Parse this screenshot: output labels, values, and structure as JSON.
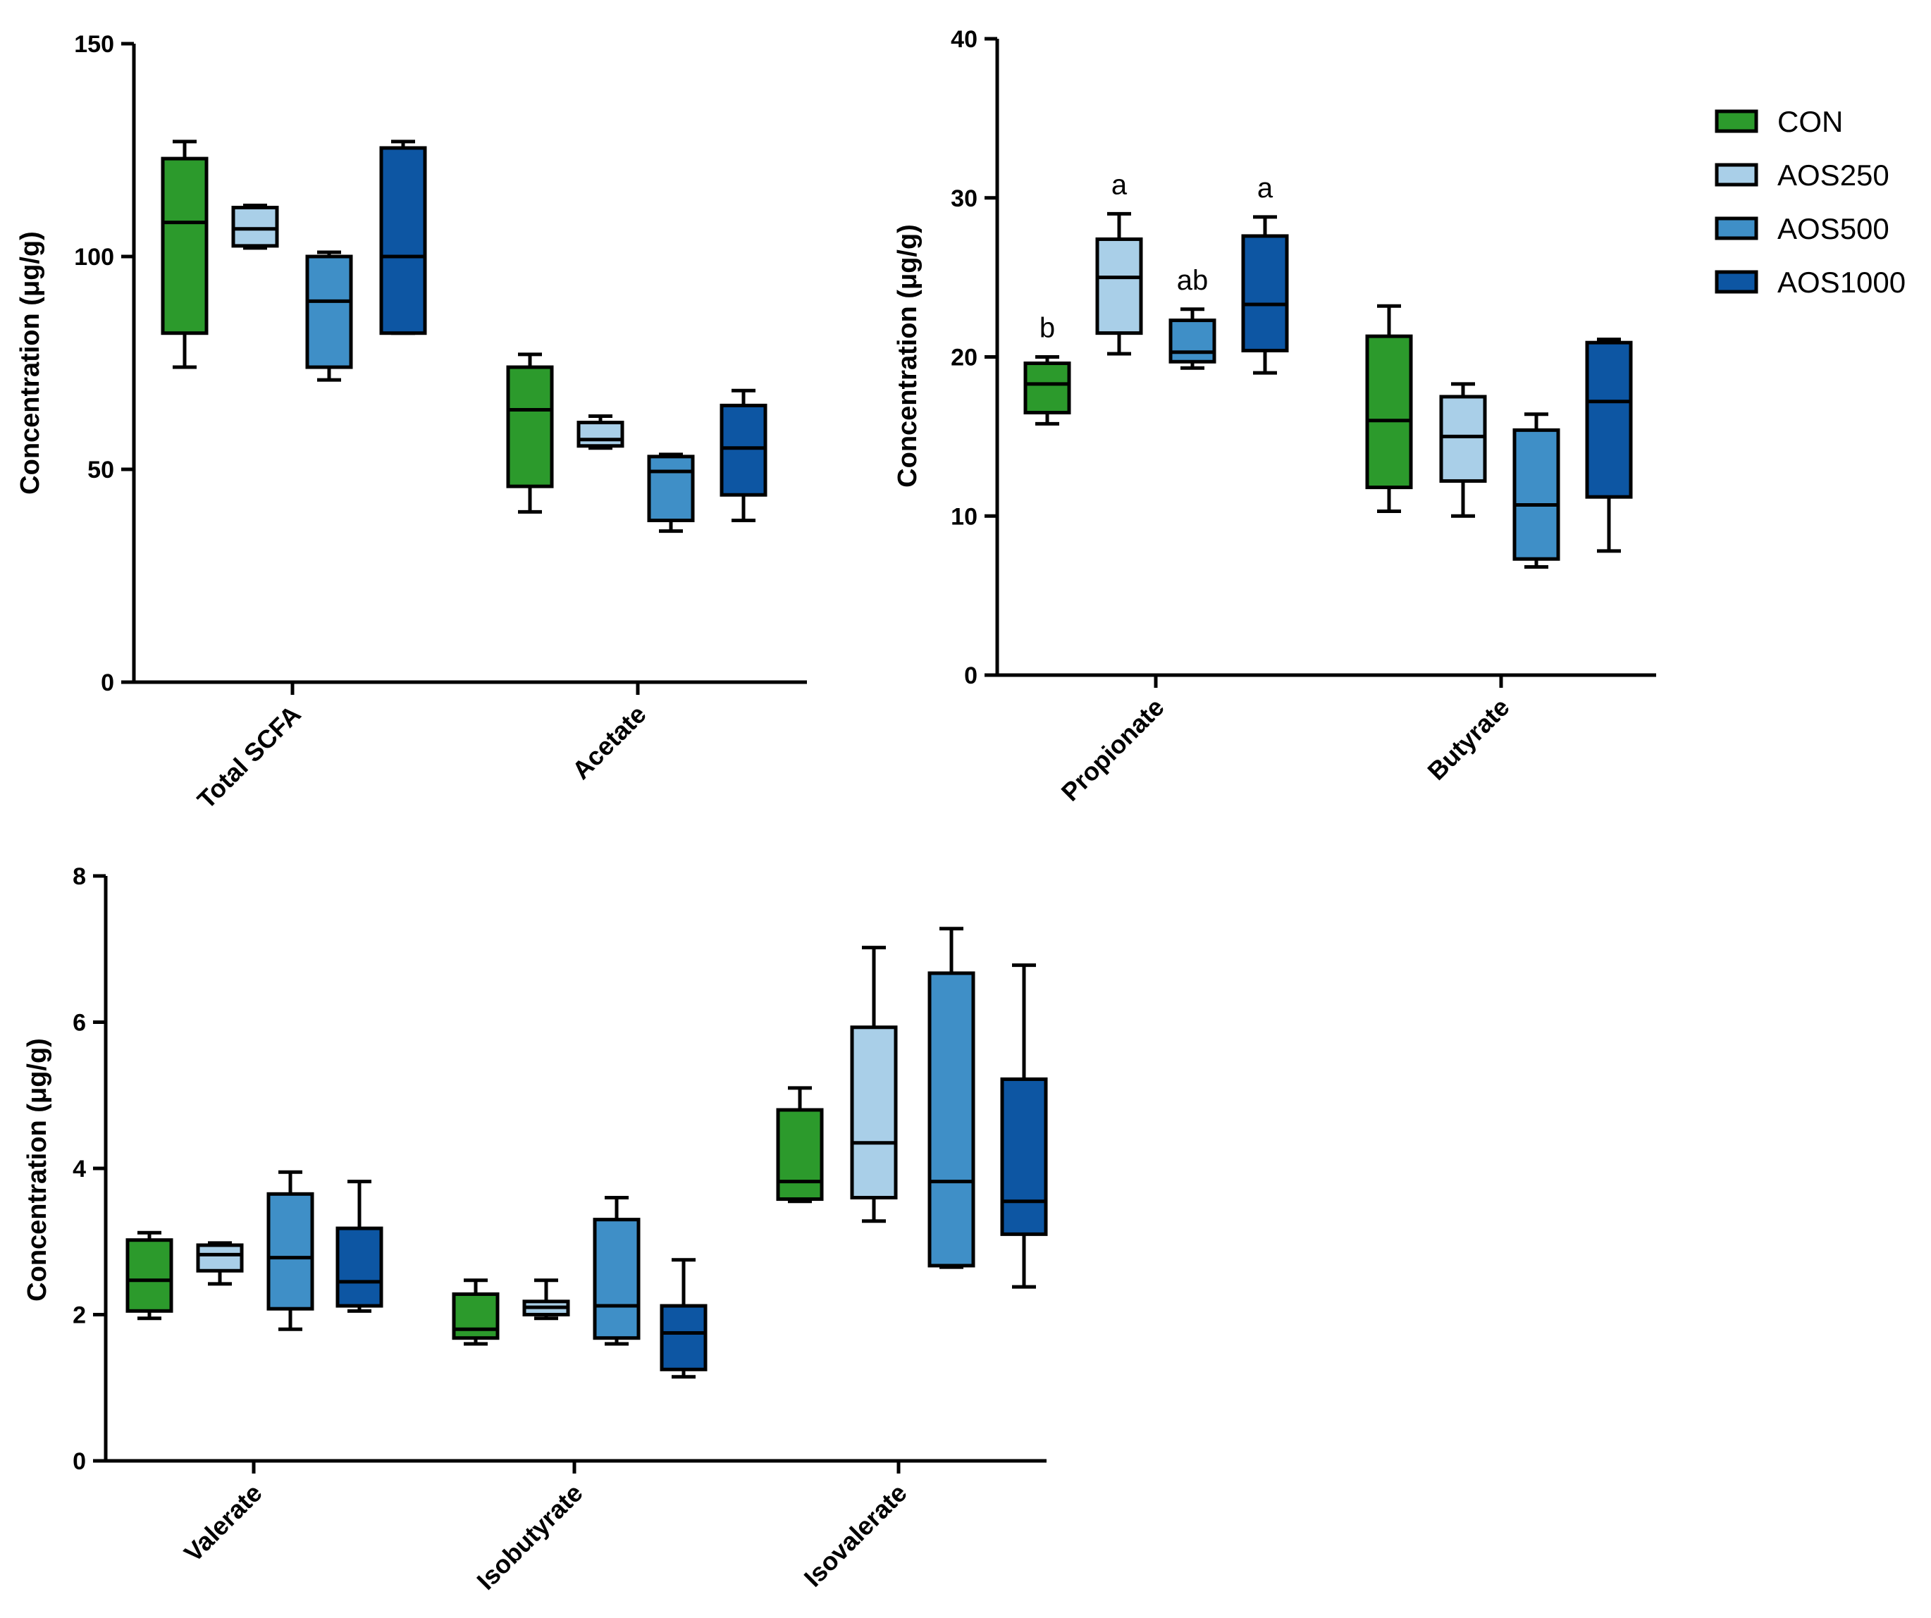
{
  "groups": [
    {
      "name": "CON",
      "color": "#2c9a2c"
    },
    {
      "name": "AOS250",
      "color": "#a9cfe8"
    },
    {
      "name": "AOS500",
      "color": "#3f8fc7"
    },
    {
      "name": "AOS1000",
      "color": "#0d56a3"
    }
  ],
  "chart_data": [
    {
      "type": "box",
      "ylabel": "Concentration (μg/g)",
      "ylim": [
        0,
        150
      ],
      "yticks": [
        0,
        50,
        100,
        150
      ],
      "categories": [
        "Total SCFA",
        "Acetate"
      ],
      "boxes": [
        [
          {
            "min": 74,
            "q1": 82,
            "median": 108,
            "q3": 123,
            "max": 127
          },
          {
            "min": 102,
            "q1": 102.5,
            "median": 106.5,
            "q3": 111.5,
            "max": 112
          },
          {
            "min": 71,
            "q1": 74,
            "median": 89.5,
            "q3": 100,
            "max": 101
          },
          {
            "min": 82,
            "q1": 82,
            "median": 100,
            "q3": 125.5,
            "max": 127
          }
        ],
        [
          {
            "min": 40,
            "q1": 46,
            "median": 64,
            "q3": 74,
            "max": 77
          },
          {
            "min": 55,
            "q1": 55.5,
            "median": 57,
            "q3": 61,
            "max": 62.5
          },
          {
            "min": 35.5,
            "q1": 38,
            "median": 49.5,
            "q3": 53,
            "max": 53.5
          },
          {
            "min": 38,
            "q1": 44,
            "median": 55,
            "q3": 65,
            "max": 68.5
          }
        ]
      ]
    },
    {
      "type": "box",
      "ylabel": "Concentration (μg/g)",
      "ylim": [
        0,
        40
      ],
      "yticks": [
        0,
        10,
        20,
        30,
        40
      ],
      "categories": [
        "Propionate",
        "Butyrate"
      ],
      "boxes": [
        [
          {
            "min": 15.8,
            "q1": 16.5,
            "median": 18.3,
            "q3": 19.6,
            "max": 20
          },
          {
            "min": 20.2,
            "q1": 21.5,
            "median": 25,
            "q3": 27.4,
            "max": 29
          },
          {
            "min": 19.3,
            "q1": 19.7,
            "median": 20.3,
            "q3": 22.3,
            "max": 23
          },
          {
            "min": 19,
            "q1": 20.4,
            "median": 23.3,
            "q3": 27.6,
            "max": 28.8
          }
        ],
        [
          {
            "min": 10.3,
            "q1": 11.8,
            "median": 16,
            "q3": 21.3,
            "max": 23.2
          },
          {
            "min": 10,
            "q1": 12.2,
            "median": 15,
            "q3": 17.5,
            "max": 18.3
          },
          {
            "min": 6.8,
            "q1": 7.3,
            "median": 10.7,
            "q3": 15.4,
            "max": 16.4
          },
          {
            "min": 7.8,
            "q1": 11.2,
            "median": 17.2,
            "q3": 20.9,
            "max": 21.1
          }
        ]
      ],
      "annotations": [
        {
          "category": 0,
          "group": 0,
          "text": "b"
        },
        {
          "category": 0,
          "group": 1,
          "text": "a"
        },
        {
          "category": 0,
          "group": 2,
          "text": "ab"
        },
        {
          "category": 0,
          "group": 3,
          "text": "a"
        }
      ],
      "legend": "right"
    },
    {
      "type": "box",
      "ylabel": "Concentration (μg/g)",
      "ylim": [
        0,
        8
      ],
      "yticks": [
        0,
        2,
        4,
        6,
        8
      ],
      "categories": [
        "Valerate",
        "Isobutyrate",
        "Isovalerate"
      ],
      "boxes": [
        [
          {
            "min": 1.95,
            "q1": 2.05,
            "median": 2.47,
            "q3": 3.02,
            "max": 3.12
          },
          {
            "min": 2.42,
            "q1": 2.6,
            "median": 2.82,
            "q3": 2.95,
            "max": 2.98
          },
          {
            "min": 1.8,
            "q1": 2.08,
            "median": 2.78,
            "q3": 3.65,
            "max": 3.95
          },
          {
            "min": 2.05,
            "q1": 2.12,
            "median": 2.45,
            "q3": 3.18,
            "max": 3.82
          }
        ],
        [
          {
            "min": 1.6,
            "q1": 1.68,
            "median": 1.8,
            "q3": 2.28,
            "max": 2.47
          },
          {
            "min": 1.95,
            "q1": 2.0,
            "median": 2.1,
            "q3": 2.18,
            "max": 2.47
          },
          {
            "min": 1.6,
            "q1": 1.68,
            "median": 2.12,
            "q3": 3.3,
            "max": 3.6
          },
          {
            "min": 1.15,
            "q1": 1.25,
            "median": 1.75,
            "q3": 2.12,
            "max": 2.75
          }
        ],
        [
          {
            "min": 3.55,
            "q1": 3.58,
            "median": 3.82,
            "q3": 4.8,
            "max": 5.1
          },
          {
            "min": 3.28,
            "q1": 3.6,
            "median": 4.35,
            "q3": 5.93,
            "max": 7.02
          },
          {
            "min": 2.65,
            "q1": 2.67,
            "median": 3.82,
            "q3": 6.67,
            "max": 7.28
          },
          {
            "min": 2.38,
            "q1": 3.1,
            "median": 3.55,
            "q3": 5.22,
            "max": 6.78
          }
        ]
      ]
    }
  ]
}
